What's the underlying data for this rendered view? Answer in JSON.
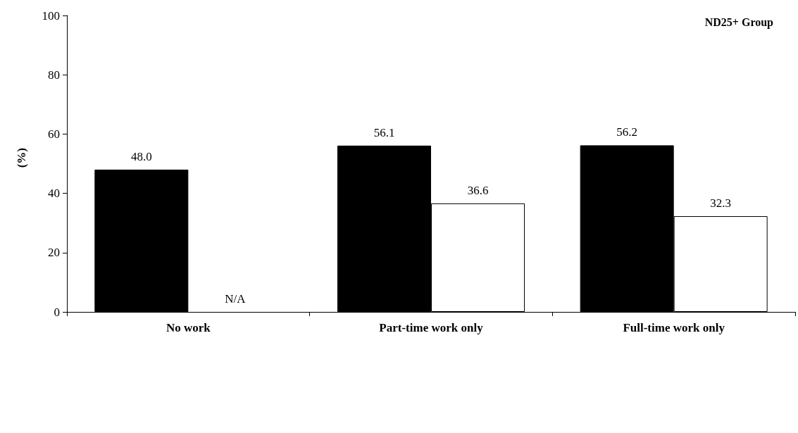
{
  "chart_data": {
    "type": "bar",
    "title": "ND25+ Group",
    "ylabel": "(%)",
    "categories": [
      "No work",
      "Part-time work only",
      "Full-time work only"
    ],
    "series": [
      {
        "color": "#000000",
        "values": [
          48.0,
          56.1,
          56.2
        ],
        "value_labels": [
          "48.0",
          "56.1",
          "56.2"
        ]
      },
      {
        "color": "#ffffff",
        "values": [
          null,
          36.6,
          32.3
        ],
        "value_labels": [
          "N/A",
          "36.6",
          "32.3"
        ]
      }
    ],
    "ylim": [
      0,
      100
    ],
    "yticks": [
      0,
      20,
      40,
      60,
      80,
      100
    ],
    "grid": false
  }
}
